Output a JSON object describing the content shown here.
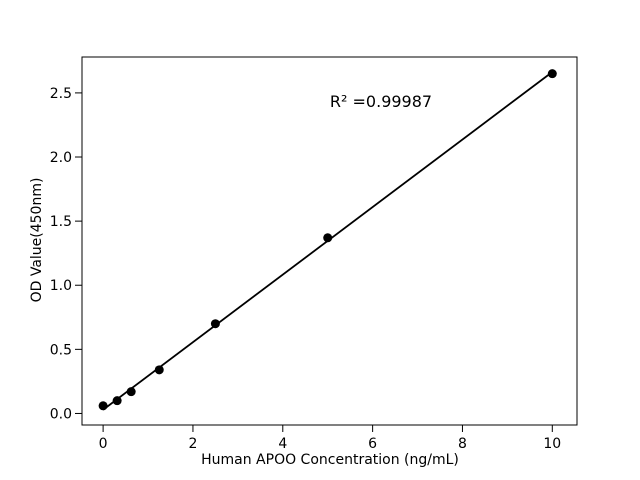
{
  "chart_data": {
    "type": "scatter",
    "title": "",
    "xlabel": "Human APOO Concentration (ng/mL)",
    "ylabel": "OD Value(450nm)",
    "annotation": "R² =0.99987",
    "r_squared": 0.99987,
    "x": [
      0,
      0.3125,
      0.625,
      1.25,
      2.5,
      5,
      10
    ],
    "y": [
      0.06,
      0.1,
      0.17,
      0.34,
      0.7,
      1.37,
      2.65
    ],
    "fit_line": {
      "slope": 0.2634,
      "intercept": 0.029,
      "x_start": 0,
      "x_end": 10
    },
    "xlim": [
      -0.47,
      10.55
    ],
    "ylim": [
      -0.09,
      2.78
    ],
    "xticks": [
      0,
      2,
      4,
      6,
      8,
      10
    ],
    "xtick_labels": [
      "0",
      "2",
      "4",
      "6",
      "8",
      "10"
    ],
    "yticks": [
      0,
      0.5,
      1,
      1.5,
      2,
      2.5
    ],
    "ytick_labels": [
      "0.0",
      "0.5",
      "1.0",
      "1.5",
      "2.0",
      "2.5"
    ],
    "grid": false,
    "legend": null,
    "marker_color": "#000000",
    "line_color": "#000000",
    "axis_color": "#000000",
    "background_color": "#ffffff"
  }
}
